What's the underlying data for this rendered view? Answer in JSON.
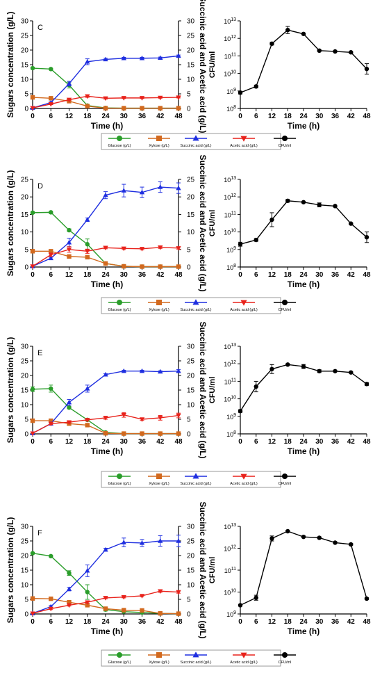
{
  "legend": {
    "entries": [
      {
        "label": "Glucose (g/L)",
        "color": "#2a9d2a",
        "marker": "circle"
      },
      {
        "label": "Xylose (g/L)",
        "color": "#d2691e",
        "marker": "square"
      },
      {
        "label": "Succinic acid (g/L)",
        "color": "#1f2fe0",
        "marker": "triangle-up"
      },
      {
        "label": "Acetic acid (g/L)",
        "color": "#e8221b",
        "marker": "triangle-down"
      },
      {
        "label": "CFU/ml",
        "color": "#000000",
        "marker": "circle"
      }
    ]
  },
  "chart_data": [
    {
      "type": "line",
      "panel_label": "C",
      "x": [
        0,
        6,
        12,
        18,
        24,
        30,
        36,
        42,
        48
      ],
      "xlabel": "Time (h)",
      "ylabel": "Sugars concentration (g/L)",
      "y2label": "Succinic acid and Acetic acid (g/L)",
      "ylim": [
        0,
        30
      ],
      "y2lim": [
        0,
        30
      ],
      "yticks": [
        0,
        5,
        10,
        15,
        20,
        25,
        30
      ],
      "series": [
        {
          "name": "Glucose (g/L)",
          "axis": "left",
          "color": "#2a9d2a",
          "marker": "circle",
          "values": [
            13.8,
            13.5,
            8.0,
            1.0,
            0.2,
            0.1,
            0.1,
            0.1,
            0.1
          ],
          "err": [
            0.3,
            0.3,
            1.0,
            0.3,
            0,
            0,
            0,
            0,
            0
          ]
        },
        {
          "name": "Xylose (g/L)",
          "axis": "left",
          "color": "#d2691e",
          "marker": "square",
          "values": [
            3.8,
            3.5,
            2.5,
            0.8,
            0.1,
            0.1,
            0.1,
            0.1,
            0.1
          ],
          "err": [
            0.2,
            0.2,
            0.3,
            0.2,
            0,
            0,
            0,
            0,
            0
          ]
        },
        {
          "name": "Succinic acid (g/L)",
          "axis": "right",
          "color": "#1f2fe0",
          "marker": "triangle-up",
          "values": [
            0.2,
            2.0,
            8.5,
            16.0,
            16.8,
            17.2,
            17.2,
            17.3,
            18.0
          ],
          "err": [
            0,
            0.3,
            0.8,
            1.0,
            0.4,
            0.3,
            0.3,
            0.3,
            0.3
          ]
        },
        {
          "name": "Acetic acid (g/L)",
          "axis": "right",
          "color": "#e8221b",
          "marker": "triangle-down",
          "values": [
            0.2,
            1.5,
            3.0,
            4.2,
            3.5,
            3.6,
            3.6,
            3.7,
            3.8
          ],
          "err": [
            0,
            0.2,
            0.3,
            0.4,
            0.3,
            0.2,
            0.2,
            0.2,
            0.2
          ]
        }
      ]
    },
    {
      "type": "line",
      "x": [
        0,
        6,
        12,
        18,
        24,
        30,
        36,
        42,
        48
      ],
      "xlabel": "Time (h)",
      "ylabel": "CFU/ml",
      "yscale": "log",
      "ylim": [
        100000000.0,
        10000000000000.0
      ],
      "yticks": [
        "10^8",
        "10^9",
        "10^10",
        "10^11",
        "10^12",
        "10^13"
      ],
      "series": [
        {
          "name": "CFU/ml",
          "color": "#000000",
          "marker": "circle",
          "values": [
            800000000.0,
            1800000000.0,
            500000000000.0,
            3000000000000.0,
            1800000000000.0,
            200000000000.0,
            180000000000.0,
            160000000000.0,
            18000000000.0
          ],
          "err_factor": [
            1.2,
            1.2,
            1.2,
            1.6,
            1.1,
            1.1,
            1.1,
            1.1,
            2.0
          ]
        }
      ]
    },
    {
      "type": "line",
      "panel_label": "D",
      "x": [
        0,
        6,
        12,
        18,
        24,
        30,
        36,
        42,
        48
      ],
      "xlabel": "Time (h)",
      "ylabel": "Sugars concentration (g/L)",
      "y2label": "Succinic acid and Acetic acid (g/L)",
      "ylim": [
        0,
        25
      ],
      "y2lim": [
        0,
        25
      ],
      "yticks": [
        0,
        5,
        10,
        15,
        20,
        25
      ],
      "series": [
        {
          "name": "Glucose (g/L)",
          "axis": "left",
          "color": "#2a9d2a",
          "marker": "circle",
          "values": [
            15.5,
            15.6,
            10.5,
            6.5,
            1.0,
            0.2,
            0.1,
            0.1,
            0.1
          ],
          "err": [
            0.3,
            0.3,
            0.4,
            1.5,
            0.3,
            0,
            0,
            0,
            0
          ]
        },
        {
          "name": "Xylose (g/L)",
          "axis": "left",
          "color": "#d2691e",
          "marker": "square",
          "values": [
            4.5,
            4.5,
            3.0,
            2.8,
            1.0,
            0.2,
            0.1,
            0.1,
            0.1
          ],
          "err": [
            0.2,
            0.2,
            0.3,
            0.3,
            0.2,
            0,
            0,
            0,
            0
          ]
        },
        {
          "name": "Succinic acid (g/L)",
          "axis": "right",
          "color": "#1f2fe0",
          "marker": "triangle-up",
          "values": [
            0.2,
            2.5,
            7.0,
            13.5,
            20.5,
            21.8,
            21.3,
            22.8,
            22.5
          ],
          "err": [
            0,
            0.3,
            1.2,
            0.5,
            1.0,
            1.8,
            1.5,
            1.5,
            1.5
          ]
        },
        {
          "name": "Acetic acid (g/L)",
          "axis": "right",
          "color": "#e8221b",
          "marker": "triangle-down",
          "values": [
            0.2,
            3.5,
            5.0,
            4.5,
            5.5,
            5.3,
            5.2,
            5.6,
            5.4
          ],
          "err": [
            0,
            0.5,
            0.8,
            0.6,
            0.3,
            0.3,
            0.3,
            0.3,
            0.3
          ]
        }
      ]
    },
    {
      "type": "line",
      "x": [
        0,
        6,
        12,
        18,
        24,
        30,
        36,
        42,
        48
      ],
      "xlabel": "Time (h)",
      "ylabel": "CFU/ml",
      "yscale": "log",
      "ylim": [
        100000000.0,
        10000000000000.0
      ],
      "yticks": [
        "10^8",
        "10^9",
        "10^10",
        "10^11",
        "10^12",
        "10^13"
      ],
      "series": [
        {
          "name": "CFU/ml",
          "color": "#000000",
          "marker": "circle",
          "values": [
            2000000000.0,
            3500000000.0,
            50000000000.0,
            600000000000.0,
            500000000000.0,
            350000000000.0,
            300000000000.0,
            30000000000.0,
            5000000000.0
          ],
          "err_factor": [
            1.3,
            1.2,
            2.5,
            1.2,
            1.1,
            1.3,
            1.1,
            1.1,
            2.0
          ]
        }
      ]
    },
    {
      "type": "line",
      "panel_label": "E",
      "x": [
        0,
        6,
        12,
        18,
        24,
        30,
        36,
        42,
        48
      ],
      "xlabel": "Time (h)",
      "ylabel": "Sugars concentration (g/L)",
      "y2label": "Succinic acid and Acetic acid (g/L)",
      "ylim": [
        0,
        30
      ],
      "y2lim": [
        0,
        30
      ],
      "yticks": [
        0,
        5,
        10,
        15,
        20,
        25,
        30
      ],
      "series": [
        {
          "name": "Glucose (g/L)",
          "axis": "left",
          "color": "#2a9d2a",
          "marker": "circle",
          "values": [
            15.3,
            15.5,
            9.0,
            4.8,
            0.5,
            0.1,
            0.1,
            0.1,
            0.1
          ],
          "err": [
            0.8,
            1.2,
            0.4,
            0.4,
            0.2,
            0,
            0,
            0,
            0
          ]
        },
        {
          "name": "Xylose (g/L)",
          "axis": "left",
          "color": "#d2691e",
          "marker": "square",
          "values": [
            4.5,
            4.5,
            3.5,
            3.0,
            0.2,
            0.1,
            0.1,
            0.1,
            0.1
          ],
          "err": [
            0.2,
            0.2,
            0.3,
            0.3,
            0,
            0,
            0,
            0,
            0
          ]
        },
        {
          "name": "Succinic acid (g/L)",
          "axis": "right",
          "color": "#1f2fe0",
          "marker": "triangle-up",
          "values": [
            0.2,
            3.5,
            10.8,
            15.5,
            20.3,
            21.5,
            21.5,
            21.3,
            21.5
          ],
          "err": [
            0,
            0.5,
            1.0,
            1.2,
            0.3,
            0.3,
            0.3,
            0.3,
            0.5
          ]
        },
        {
          "name": "Acetic acid (g/L)",
          "axis": "right",
          "color": "#e8221b",
          "marker": "triangle-down",
          "values": [
            0.2,
            3.5,
            4.0,
            4.8,
            5.5,
            6.5,
            5.0,
            5.5,
            6.3
          ],
          "err": [
            0,
            0.3,
            0.4,
            0.4,
            0.5,
            0.8,
            0.4,
            0.8,
            0.8
          ]
        }
      ]
    },
    {
      "type": "line",
      "x": [
        0,
        6,
        12,
        18,
        24,
        30,
        36,
        42,
        48
      ],
      "xlabel": "Time (h)",
      "ylabel": "CFU/ml",
      "yscale": "log",
      "ylim": [
        100000000.0,
        10000000000000.0
      ],
      "yticks": [
        "10^8",
        "10^9",
        "10^10",
        "10^11",
        "10^12",
        "10^13"
      ],
      "series": [
        {
          "name": "CFU/ml",
          "color": "#000000",
          "marker": "circle",
          "values": [
            2000000000.0,
            50000000000.0,
            500000000000.0,
            900000000000.0,
            700000000000.0,
            380000000000.0,
            380000000000.0,
            320000000000.0,
            70000000000.0
          ],
          "err_factor": [
            1.2,
            2.0,
            1.8,
            1.1,
            1.3,
            1.2,
            1.1,
            1.1,
            1.2
          ]
        }
      ]
    },
    {
      "type": "line",
      "panel_label": "F",
      "x": [
        0,
        6,
        12,
        18,
        24,
        30,
        36,
        42,
        48
      ],
      "xlabel": "Time (h)",
      "ylabel": "Sugars concentration (g/L)",
      "y2label": "Succinic acid and Acetic acid (g/L)",
      "ylim": [
        0,
        30
      ],
      "y2lim": [
        0,
        30
      ],
      "yticks": [
        0,
        5,
        10,
        15,
        20,
        25,
        30
      ],
      "series": [
        {
          "name": "Glucose (g/L)",
          "axis": "left",
          "color": "#2a9d2a",
          "marker": "circle",
          "values": [
            20.8,
            19.8,
            14.0,
            7.5,
            1.5,
            0.8,
            0.5,
            0.2,
            0.1
          ],
          "err": [
            0.3,
            0.3,
            0.8,
            2.5,
            0.5,
            0.3,
            0.2,
            0,
            0
          ]
        },
        {
          "name": "Xylose (g/L)",
          "axis": "left",
          "color": "#d2691e",
          "marker": "square",
          "values": [
            5.3,
            5.2,
            4.0,
            3.0,
            1.8,
            1.3,
            1.2,
            0.2,
            0.1
          ],
          "err": [
            0.2,
            0.2,
            0.3,
            0.3,
            0.2,
            0.2,
            0.2,
            0,
            0
          ]
        },
        {
          "name": "Succinic acid (g/L)",
          "axis": "right",
          "color": "#1f2fe0",
          "marker": "triangle-up",
          "values": [
            0.2,
            2.5,
            8.5,
            14.8,
            22.0,
            24.5,
            24.3,
            25.0,
            25.0
          ],
          "err": [
            0,
            0.4,
            0.6,
            2.0,
            0.5,
            1.5,
            1.2,
            1.8,
            2.0
          ]
        },
        {
          "name": "Acetic acid (g/L)",
          "axis": "right",
          "color": "#e8221b",
          "marker": "triangle-down",
          "values": [
            0.2,
            1.8,
            3.0,
            4.0,
            5.5,
            5.8,
            6.2,
            7.8,
            7.5
          ],
          "err": [
            0,
            0.3,
            0.3,
            0.3,
            0.3,
            0.3,
            0.3,
            0.4,
            0.4
          ]
        }
      ]
    },
    {
      "type": "line",
      "x": [
        0,
        6,
        12,
        18,
        24,
        30,
        36,
        42,
        48
      ],
      "xlabel": "Time (h)",
      "ylabel": "CFU/ml",
      "yscale": "log",
      "ylim": [
        1000000000.0,
        10000000000000.0
      ],
      "yticks": [
        "10^9",
        "10^10",
        "10^11",
        "10^12",
        "10^13"
      ],
      "series": [
        {
          "name": "CFU/ml",
          "color": "#000000",
          "marker": "circle",
          "values": [
            2500000000.0,
            5500000000.0,
            2800000000000.0,
            6000000000000.0,
            3300000000000.0,
            3000000000000.0,
            1800000000000.0,
            1500000000000.0,
            5000000000.0
          ],
          "err_factor": [
            1.1,
            1.3,
            1.3,
            1.1,
            1.1,
            1.1,
            1.1,
            1.1,
            1.1
          ]
        }
      ]
    }
  ]
}
